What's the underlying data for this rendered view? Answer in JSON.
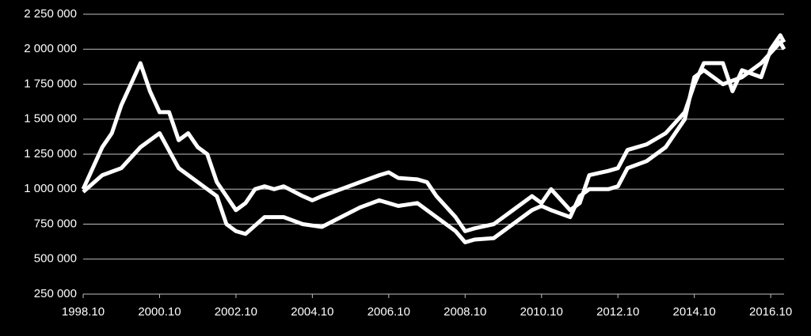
{
  "chart_data": {
    "type": "line",
    "background": "#000000",
    "grid": true,
    "xlim": [
      1998.75,
      2017.1
    ],
    "xticks": [
      {
        "value": 1998.75,
        "label": "1998.10"
      },
      {
        "value": 2000.75,
        "label": "2000.10"
      },
      {
        "value": 2002.75,
        "label": "2002.10"
      },
      {
        "value": 2004.75,
        "label": "2004.10"
      },
      {
        "value": 2006.75,
        "label": "2006.10"
      },
      {
        "value": 2008.75,
        "label": "2008.10"
      },
      {
        "value": 2010.75,
        "label": "2010.10"
      },
      {
        "value": 2012.75,
        "label": "2012.10"
      },
      {
        "value": 2014.75,
        "label": "2014.10"
      },
      {
        "value": 2016.75,
        "label": "2016.10"
      }
    ],
    "ylim": [
      250000,
      2250000
    ],
    "yticks": [
      {
        "value": 250000,
        "label": "250 000"
      },
      {
        "value": 500000,
        "label": "500 000"
      },
      {
        "value": 750000,
        "label": "750 000"
      },
      {
        "value": 1000000,
        "label": "1 000 000"
      },
      {
        "value": 1250000,
        "label": "1 250 000"
      },
      {
        "value": 1500000,
        "label": "1 500 000"
      },
      {
        "value": 1750000,
        "label": "1 750 000"
      },
      {
        "value": 2000000,
        "label": "2 000 000"
      },
      {
        "value": 2250000,
        "label": "2 250 000"
      }
    ],
    "series": [
      {
        "color": "#ffffff",
        "x": [
          1998.75,
          1999.0,
          1999.25,
          1999.5,
          1999.75,
          2000.0,
          2000.25,
          2000.5,
          2000.75,
          2001.0,
          2001.25,
          2001.5,
          2001.75,
          2002.0,
          2002.25,
          2002.5,
          2002.75,
          2003.0,
          2003.25,
          2003.5,
          2003.75,
          2004.0,
          2004.5,
          2004.75,
          2005.0,
          2005.5,
          2006.0,
          2006.5,
          2006.75,
          2007.0,
          2007.5,
          2007.75,
          2008.0,
          2008.5,
          2008.75,
          2009.0,
          2009.5,
          2010.0,
          2010.5,
          2010.75,
          2011.0,
          2011.5,
          2011.75,
          2012.0,
          2012.5,
          2012.75,
          2013.0,
          2013.5,
          2014.0,
          2014.5,
          2014.75,
          2015.0,
          2015.5,
          2015.75,
          2016.0,
          2016.5,
          2016.75,
          2017.0,
          2017.1
        ],
        "values": [
          1000000,
          1150000,
          1300000,
          1400000,
          1600000,
          1750000,
          1900000,
          1700000,
          1550000,
          1550000,
          1350000,
          1400000,
          1300000,
          1250000,
          1050000,
          950000,
          850000,
          900000,
          1000000,
          1020000,
          1000000,
          1020000,
          950000,
          920000,
          950000,
          1000000,
          1050000,
          1100000,
          1120000,
          1080000,
          1070000,
          1050000,
          950000,
          800000,
          700000,
          720000,
          750000,
          850000,
          950000,
          900000,
          1000000,
          850000,
          900000,
          1100000,
          1130000,
          1150000,
          1280000,
          1320000,
          1400000,
          1550000,
          1750000,
          1900000,
          1900000,
          1700000,
          1850000,
          1800000,
          2000000,
          2100000,
          2050000
        ]
      },
      {
        "color": "#ffffff",
        "x": [
          1998.75,
          1999.25,
          1999.75,
          2000.25,
          2000.75,
          2001.25,
          2001.75,
          2002.25,
          2002.5,
          2002.75,
          2003.0,
          2003.5,
          2004.0,
          2004.5,
          2005.0,
          2005.5,
          2006.0,
          2006.5,
          2007.0,
          2007.5,
          2008.0,
          2008.5,
          2008.75,
          2009.0,
          2009.5,
          2010.0,
          2010.5,
          2010.75,
          2011.0,
          2011.5,
          2011.75,
          2012.0,
          2012.5,
          2012.75,
          2013.0,
          2013.5,
          2014.0,
          2014.5,
          2014.75,
          2015.0,
          2015.5,
          2016.0,
          2016.5,
          2017.0,
          2017.1
        ],
        "values": [
          980000,
          1100000,
          1150000,
          1300000,
          1400000,
          1150000,
          1050000,
          950000,
          750000,
          700000,
          680000,
          800000,
          800000,
          750000,
          730000,
          800000,
          870000,
          920000,
          880000,
          900000,
          800000,
          700000,
          620000,
          640000,
          650000,
          750000,
          850000,
          880000,
          850000,
          800000,
          950000,
          1000000,
          1000000,
          1020000,
          1150000,
          1200000,
          1300000,
          1500000,
          1800000,
          1850000,
          1750000,
          1800000,
          1900000,
          2050000,
          2000000
        ]
      }
    ]
  }
}
